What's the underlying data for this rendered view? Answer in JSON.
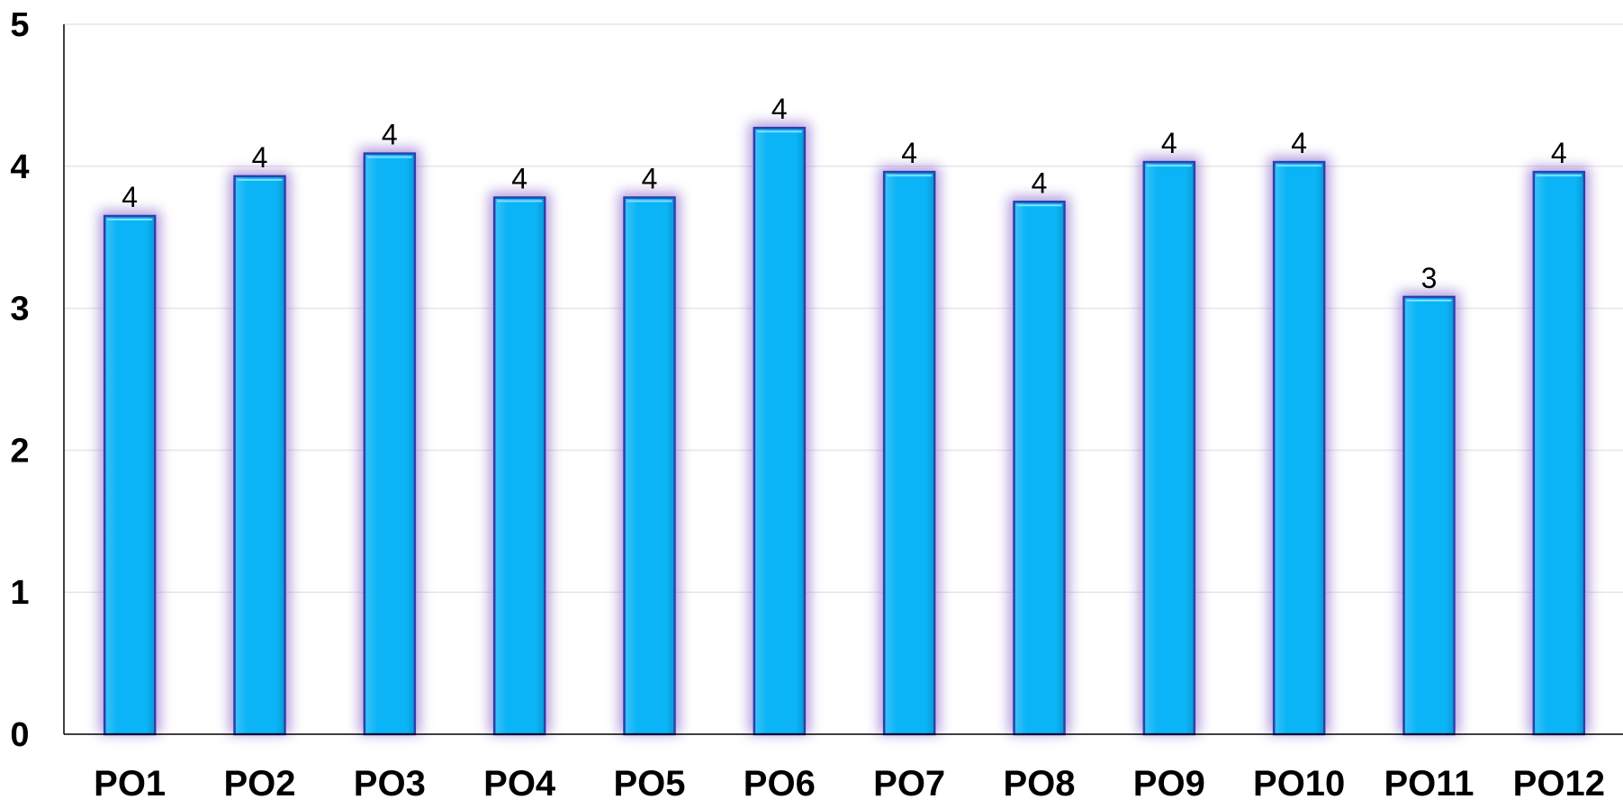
{
  "chart_data": {
    "type": "bar",
    "categories": [
      "PO1",
      "PO2",
      "PO3",
      "PO4",
      "PO5",
      "PO6",
      "PO7",
      "PO8",
      "PO9",
      "PO10",
      "PO11",
      "PO12"
    ],
    "values": [
      3.65,
      3.93,
      4.09,
      3.78,
      3.78,
      4.27,
      3.96,
      3.75,
      4.03,
      4.03,
      3.08,
      3.96
    ],
    "data_labels": [
      "4",
      "4",
      "4",
      "4",
      "4",
      "4",
      "4",
      "4",
      "4",
      "4",
      "3",
      "4"
    ],
    "y_ticks": [
      "0",
      "1",
      "2",
      "3",
      "4",
      "5"
    ],
    "ylim": [
      0,
      5
    ],
    "grid": true,
    "legend": "none",
    "colors": {
      "bar_fill": "#0ab4f6",
      "bar_border": "#2d3fae",
      "bar_glow": "#9a7ad0",
      "gridline": "#e6e6e6",
      "axis": "#000000"
    }
  }
}
